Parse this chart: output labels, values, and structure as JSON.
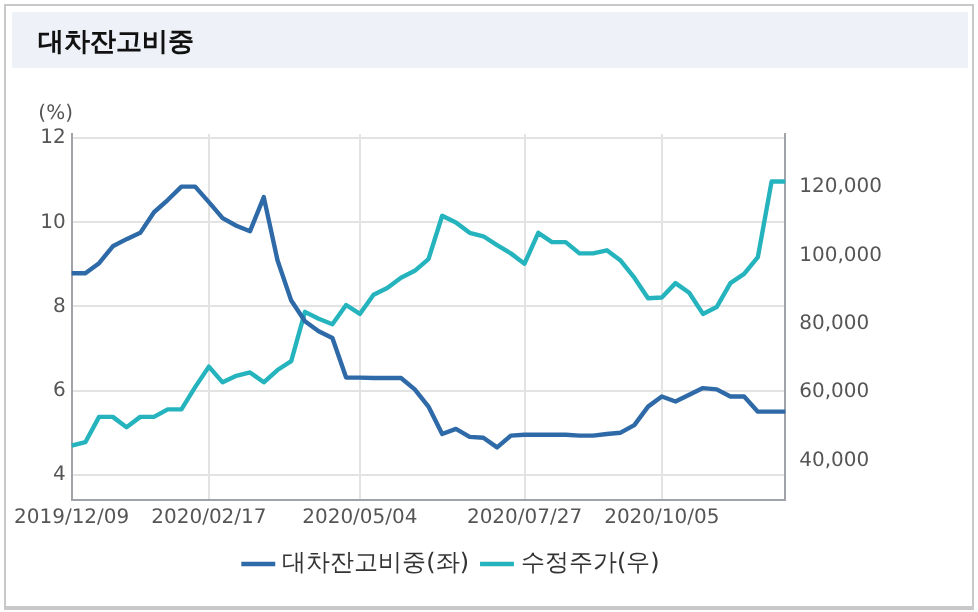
{
  "chart_data": {
    "type": "line",
    "title": "대차잔고비중",
    "ylabel": "(%)",
    "categories": [
      "2019/12/09",
      null,
      null,
      null,
      null,
      null,
      null,
      null,
      null,
      null,
      "2020/02/17",
      null,
      null,
      null,
      null,
      null,
      null,
      null,
      null,
      null,
      null,
      "2020/05/04",
      null,
      null,
      null,
      null,
      null,
      null,
      null,
      null,
      null,
      null,
      null,
      "2020/07/27",
      null,
      null,
      null,
      null,
      null,
      null,
      null,
      null,
      null,
      "2020/10/05",
      null,
      null,
      null,
      null,
      null,
      null,
      null,
      null,
      null
    ],
    "series": [
      {
        "name": "대차잔고비중(좌)",
        "color": "#2f6aa8",
        "values": [
          8.79,
          8.79,
          9.03,
          9.43,
          9.6,
          9.75,
          10.24,
          10.53,
          10.85,
          10.85,
          10.48,
          10.1,
          9.92,
          9.79,
          10.6,
          9.1,
          8.14,
          7.65,
          7.41,
          7.25,
          6.31,
          6.31,
          6.3,
          6.3,
          6.3,
          6.03,
          5.62,
          4.97,
          5.09,
          4.9,
          4.88,
          4.65,
          4.93,
          4.95,
          4.95,
          4.95,
          4.95,
          4.93,
          4.93,
          4.97,
          5.0,
          5.18,
          5.62,
          5.86,
          5.74,
          5.9,
          6.06,
          6.03,
          5.86,
          5.86,
          5.5,
          5.5,
          5.5
        ]
      },
      {
        "name": "수정주가(우)",
        "color": "#25b4bd",
        "axis": "y2",
        "values": [
          44400,
          45400,
          52800,
          52800,
          49800,
          52800,
          52800,
          55000,
          55000,
          61500,
          67500,
          62900,
          64800,
          65800,
          62900,
          66500,
          69100,
          83500,
          81500,
          79900,
          85500,
          82900,
          88500,
          90500,
          93500,
          95500,
          98900,
          111600,
          109600,
          106600,
          105600,
          103000,
          100600,
          97600,
          106600,
          103900,
          103900,
          100600,
          100600,
          101500,
          98500,
          93500,
          87500,
          87700,
          91900,
          89100,
          82900,
          84900,
          91900,
          94600,
          99500,
          121600,
          121600
        ]
      }
    ],
    "ylim": [
      3.4,
      12.1
    ],
    "yticks": [
      4,
      6,
      8,
      10,
      12
    ],
    "y2lim": [
      28500,
      135500
    ],
    "y2ticks": [
      {
        "value": 40000,
        "label": "40,000"
      },
      {
        "value": 60000,
        "label": "60,000"
      },
      {
        "value": 80000,
        "label": "80,000"
      },
      {
        "value": 100000,
        "label": "100,000"
      },
      {
        "value": 120000,
        "label": "120,000"
      }
    ],
    "grid": true,
    "legend": "bottom",
    "marker": "none",
    "line_style": "solid"
  }
}
